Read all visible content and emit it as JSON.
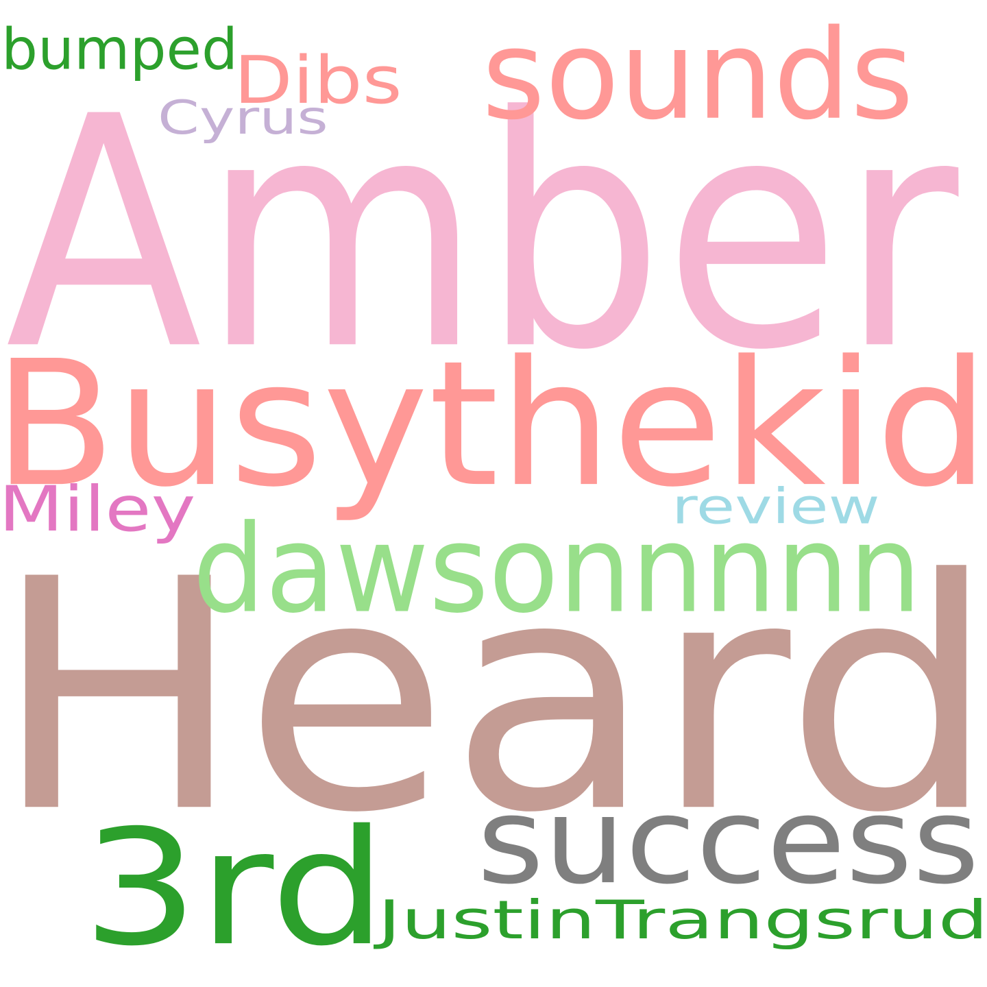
{
  "words": [
    {
      "id": "amber",
      "text": "Amber",
      "color": "#f6b6d2"
    },
    {
      "id": "heard",
      "text": "Heard",
      "color": "#c49c94"
    },
    {
      "id": "busythekid",
      "text": "Busythekid",
      "color": "#ff9896"
    },
    {
      "id": "sounds",
      "text": "sounds",
      "color": "#ff9896"
    },
    {
      "id": "dawsonnnnn",
      "text": "dawsonnnnn",
      "color": "#98df8a"
    },
    {
      "id": "success",
      "text": "success",
      "color": "#7f7f7f"
    },
    {
      "id": "3rd",
      "text": "3rd",
      "color": "#2ca02c"
    },
    {
      "id": "justintrangsrud",
      "text": "JustinTrangsrud",
      "color": "#2ca02c"
    },
    {
      "id": "bumped",
      "text": "bumped",
      "color": "#2ca02c"
    },
    {
      "id": "dibs",
      "text": "Dibs",
      "color": "#ff9896"
    },
    {
      "id": "cyrus",
      "text": "Cyrus",
      "color": "#c5b0d5"
    },
    {
      "id": "miley",
      "text": "Miley",
      "color": "#e377c2"
    },
    {
      "id": "review",
      "text": "review",
      "color": "#9edae5"
    }
  ]
}
